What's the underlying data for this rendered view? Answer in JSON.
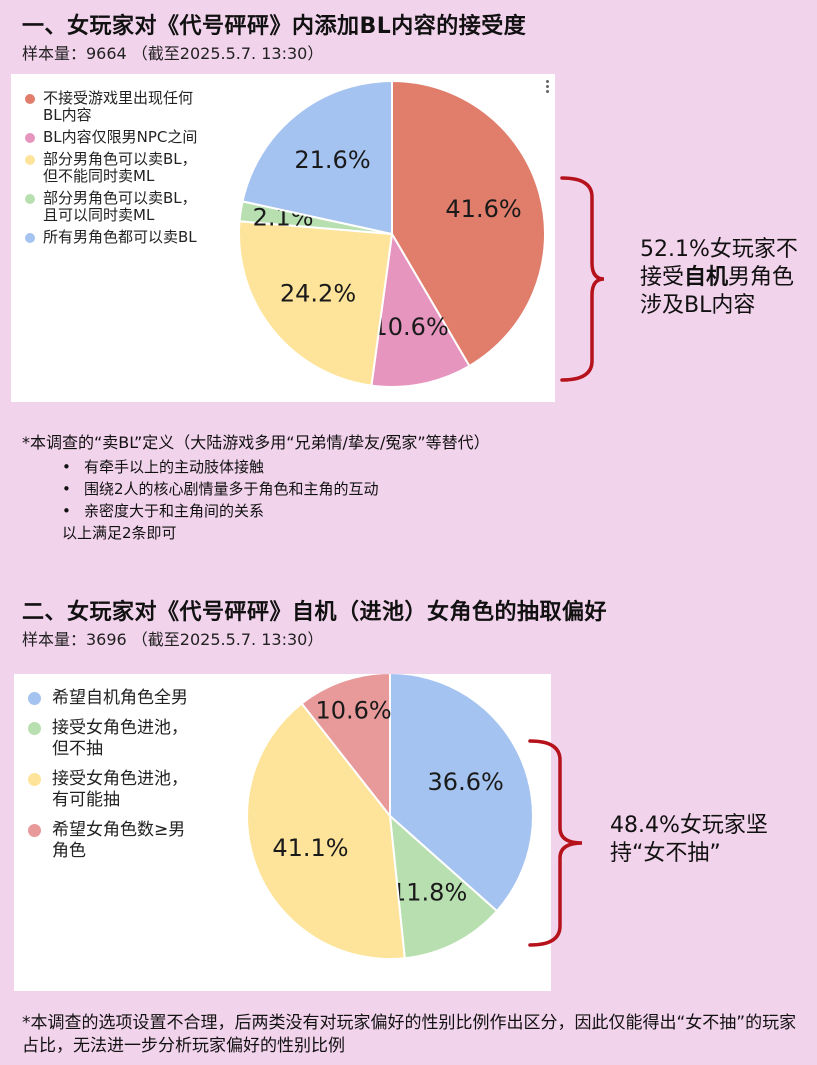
{
  "section1": {
    "title": "一、女玩家对《代号砰砰》内添加BL内容的接受度",
    "sample": "样本量：9664 （截至2025.5.7. 13:30）",
    "callout_pre": "52.1%女玩家不接受",
    "callout_bold": "自机",
    "callout_post": "男角色涉及BL内容",
    "note_title": "*本调查的“卖BL”定义（大陆游戏多用“兄弟情/挚友/冤家”等替代）",
    "bullets": [
      "有牵手以上的主动肢体接触",
      "围绕2人的核心剧情量多于角色和主角的互动",
      "亲密度大于和主角间的关系"
    ],
    "note_end": "以上满足2条即可"
  },
  "section2": {
    "title": "二、女玩家对《代号砰砰》自机（进池）女角色的抽取偏好",
    "sample": "样本量：3696 （截至2025.5.7. 13:30）",
    "callout": "48.4%女玩家坚持“女不抽”",
    "footnote": "*本调查的选项设置不合理，后两类没有对玩家偏好的性别比例作出区分，因此仅能得出“女不抽”的玩家占比，无法进一步分析玩家偏好的性别比例"
  },
  "chart_data": [
    {
      "type": "pie",
      "title": "",
      "labels": [
        "不接受游戏里出现任何BL内容",
        "BL内容仅限男NPC之间",
        "部分男角色可以卖BL，但不能同时卖ML",
        "部分男角色可以卖BL，且可以同时卖ML",
        "所有男角色都可以卖BL"
      ],
      "legend_lines": [
        [
          "不接受游戏里出现任何",
          "BL内容"
        ],
        [
          "BL内容仅限男NPC之间"
        ],
        [
          "部分男角色可以卖BL，",
          "但不能同时卖ML"
        ],
        [
          "部分男角色可以卖BL，",
          "且可以同时卖ML"
        ],
        [
          "所有男角色都可以卖BL"
        ]
      ],
      "values": [
        41.6,
        10.6,
        24.2,
        2.1,
        21.6
      ],
      "value_labels": [
        "41.6%",
        "10.6%",
        "24.2%",
        "2.1%",
        "21.6%"
      ],
      "colors": [
        "#e07d6b",
        "#e695bf",
        "#fde49a",
        "#b8dfb0",
        "#a5c3f0"
      ],
      "legend_position": "left"
    },
    {
      "type": "pie",
      "title": "",
      "labels": [
        "希望自机角色全男",
        "接受女角色进池，但不抽",
        "接受女角色进池，有可能抽",
        "希望女角色数≥男角色"
      ],
      "legend_lines": [
        [
          "希望自机角色全男"
        ],
        [
          "接受女角色进池，",
          "但不抽"
        ],
        [
          "接受女角色进池，",
          "有可能抽"
        ],
        [
          "希望女角色数≥男",
          "角色"
        ]
      ],
      "values": [
        36.6,
        11.8,
        41.1,
        10.6
      ],
      "value_labels": [
        "36.6%",
        "11.8%",
        "41.1%",
        "10.6%"
      ],
      "colors": [
        "#a5c3f0",
        "#b8dfb0",
        "#fde49a",
        "#e89a9b"
      ],
      "legend_position": "left"
    }
  ]
}
